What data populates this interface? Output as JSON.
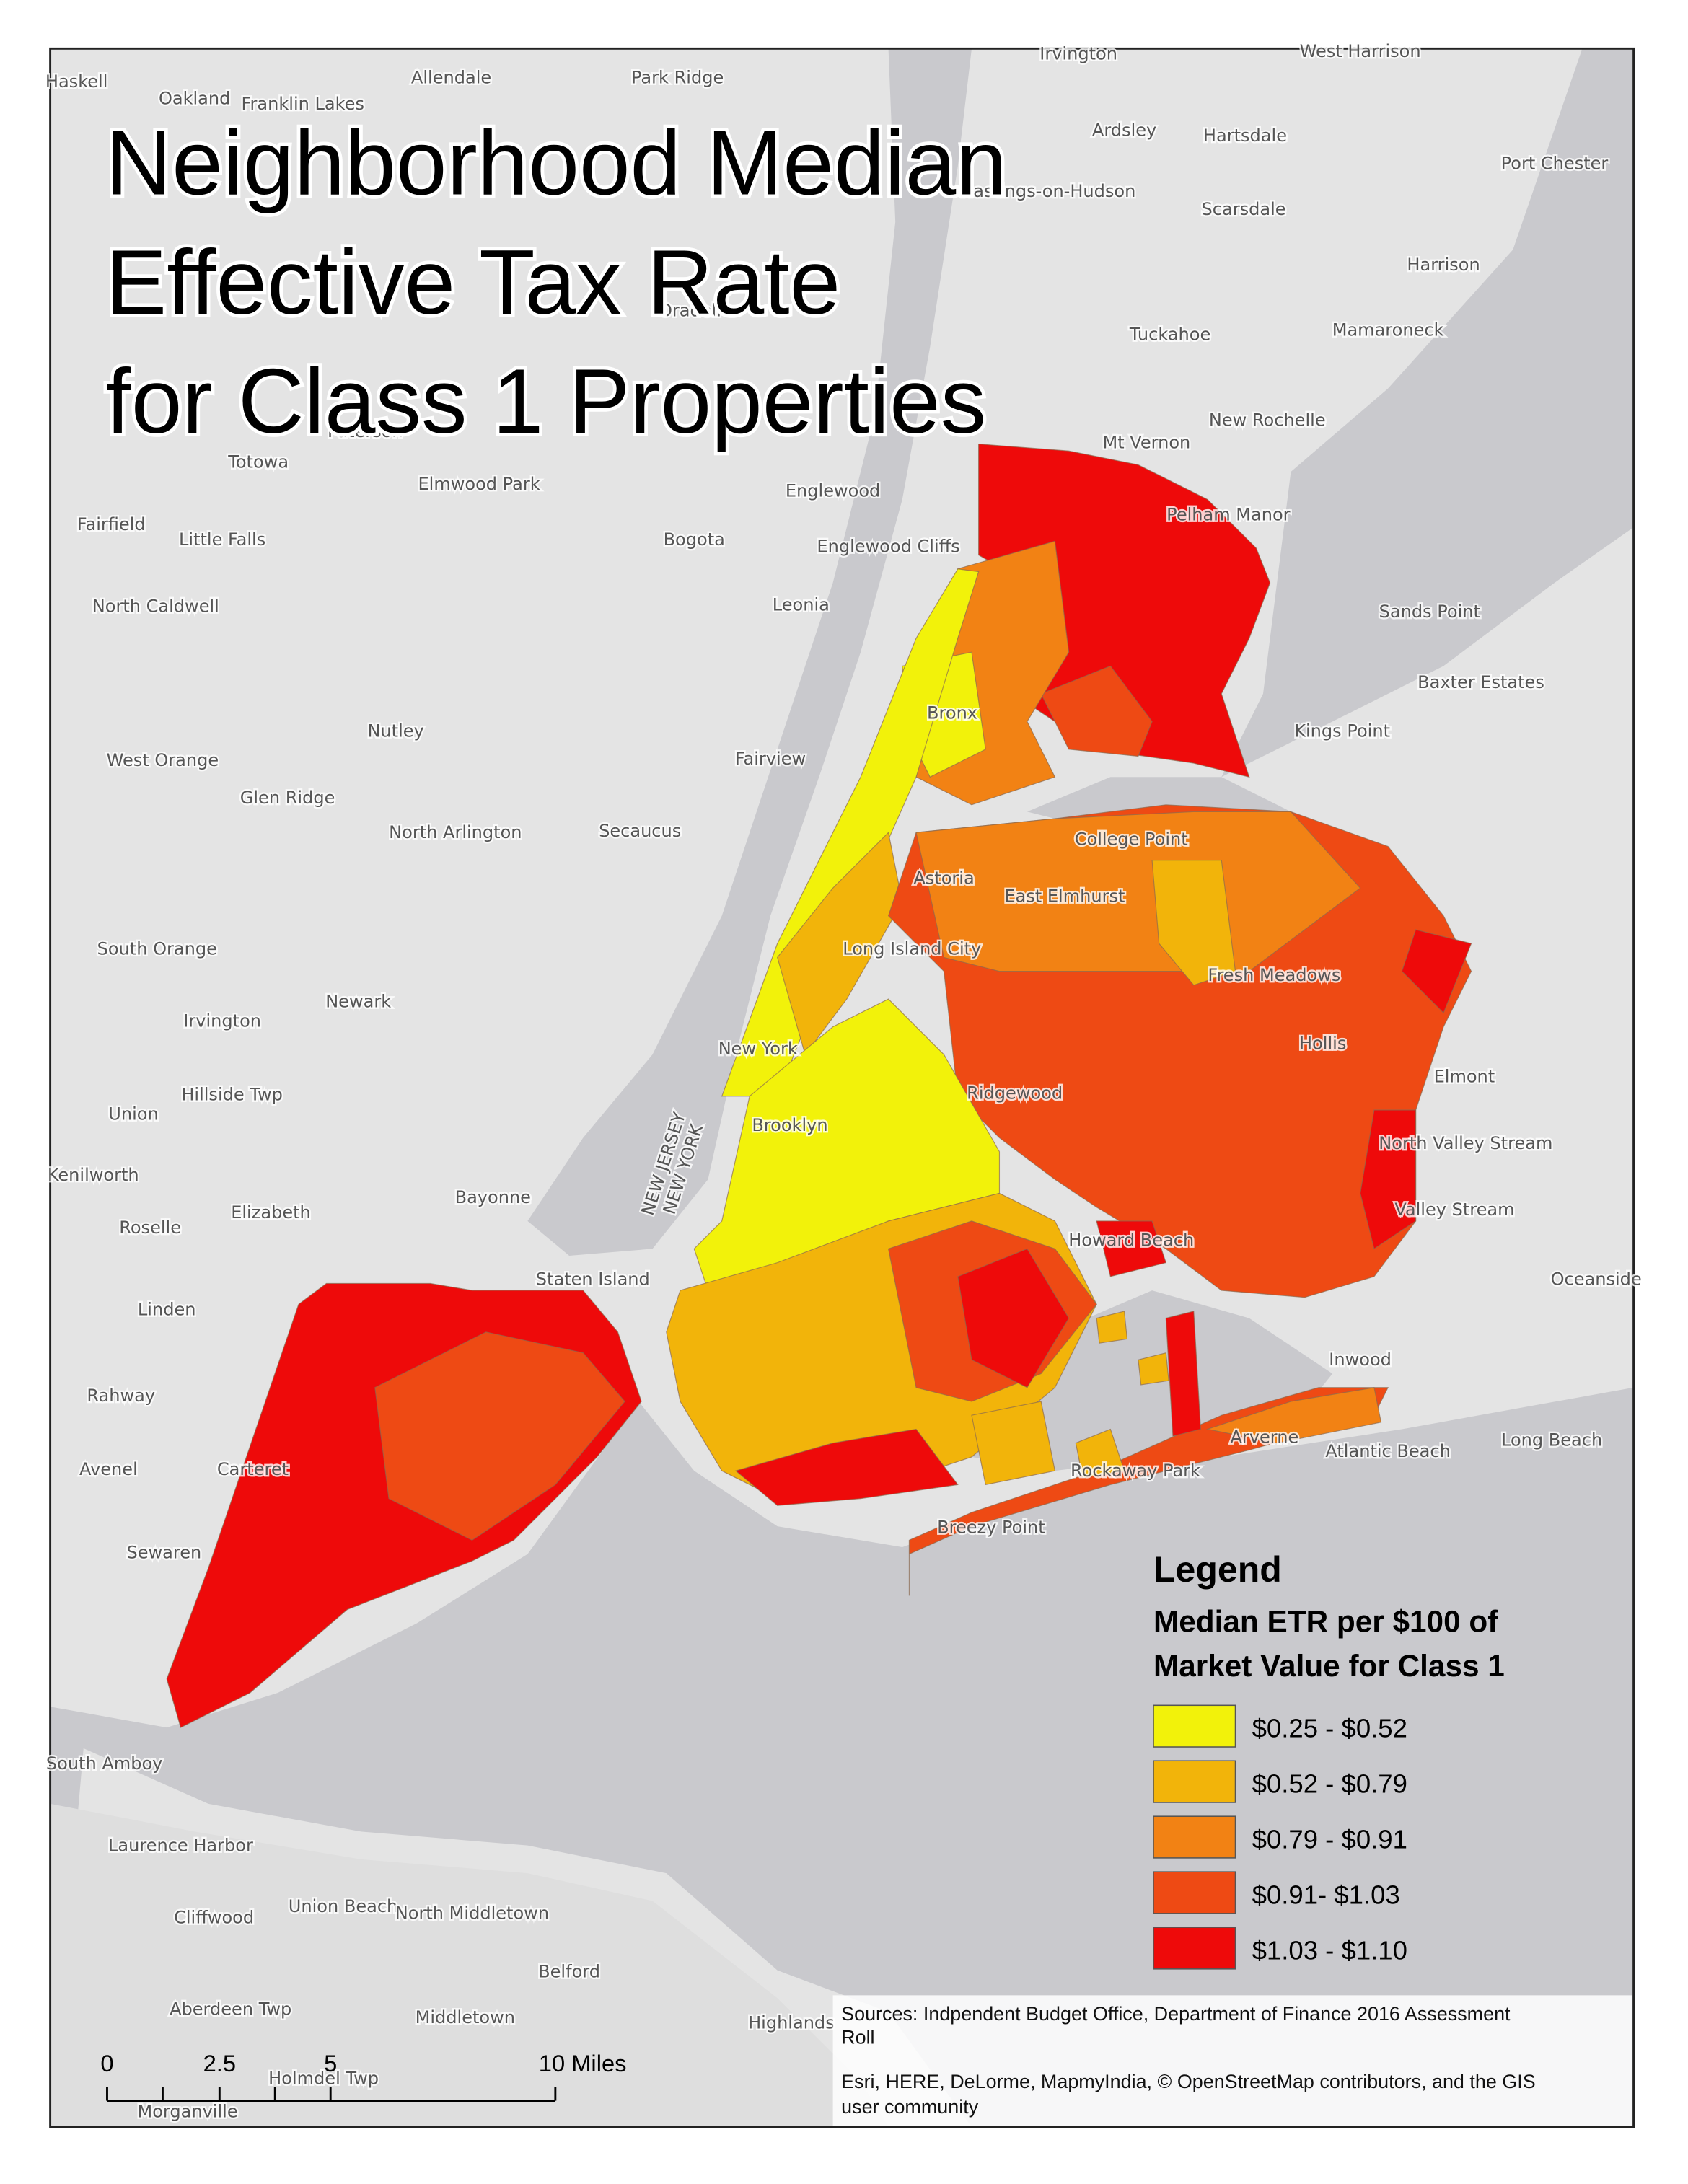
{
  "title": [
    "Neighborhood Median",
    "Effective Tax Rate",
    "for Class 1 Properties"
  ],
  "legend": {
    "heading": "Legend",
    "subtitle": [
      "Median ETR per $100 of",
      "Market Value for Class 1"
    ],
    "items": [
      {
        "label": "$0.25 - $0.52",
        "color": "#f2f20a"
      },
      {
        "label": "$0.52 - $0.79",
        "color": "#f2b40a"
      },
      {
        "label": "$0.79 - $0.91",
        "color": "#f28214"
      },
      {
        "label": "$0.91- $1.03",
        "color": "#ee4a14"
      },
      {
        "label": "$1.03 - $1.10",
        "color": "#ee0a0a"
      }
    ]
  },
  "sources": [
    "Sources: Indpendent Budget Office, Department of Finance 2016 Assessment",
    "Roll"
  ],
  "credits": [
    "Esri, HERE, DeLorme, MapmyIndia, © OpenStreetMap contributors, and the GIS",
    "user community"
  ],
  "scale_bar": {
    "labels": [
      "0",
      "2.5",
      "5",
      "10 Miles"
    ]
  },
  "state_labels": [
    "NEW JERSEY",
    "NEW YORK"
  ],
  "places": [
    "Haskell",
    "Oakland",
    "Franklin Lakes",
    "Allendale",
    "Park Ridge",
    "Irvington",
    "West Harrison",
    "Ardsley",
    "Hartsdale",
    "Port Chester",
    "Hastings-on-Hudson",
    "Scarsdale",
    "Harrison",
    "Oradell",
    "Tuckahoe",
    "Mamaroneck",
    "New Rochelle",
    "Mt Vernon",
    "Paterson",
    "Totowa",
    "Elmwood Park",
    "Englewood",
    "Pelham Manor",
    "Fairfield",
    "Little Falls",
    "Bogota",
    "Englewood Cliffs",
    "Sands Point",
    "North Caldwell",
    "Leonia",
    "Baxter Estates",
    "Nutley",
    "Kings Point",
    "Bronx",
    "West Orange",
    "Fairview",
    "Glen Ridge",
    "North Arlington",
    "Secaucus",
    "College Point",
    "Astoria",
    "East Elmhurst",
    "South Orange",
    "Long Island City",
    "Fresh Meadows",
    "Newark",
    "Irvington",
    "New York",
    "Hollis",
    "Elmont",
    "Hillside Twp",
    "Ridgewood",
    "Union",
    "Brooklyn",
    "North Valley Stream",
    "Kenilworth",
    "Bayonne",
    "Elizabeth",
    "Valley Stream",
    "Roselle",
    "Howard Beach",
    "Staten Island",
    "Oceanside",
    "Linden",
    "Inwood",
    "Rahway",
    "Long Beach",
    "Atlantic Beach",
    "Arverne",
    "Avenel",
    "Carteret",
    "Rockaway Park",
    "Breezy Point",
    "Sewaren",
    "South Amboy",
    "Laurence Harbor",
    "Union Beach",
    "Cliffwood",
    "North Middletown",
    "Belford",
    "Aberdeen Twp",
    "Middletown",
    "Highlands",
    "Holmdel Twp",
    "Morganville"
  ]
}
